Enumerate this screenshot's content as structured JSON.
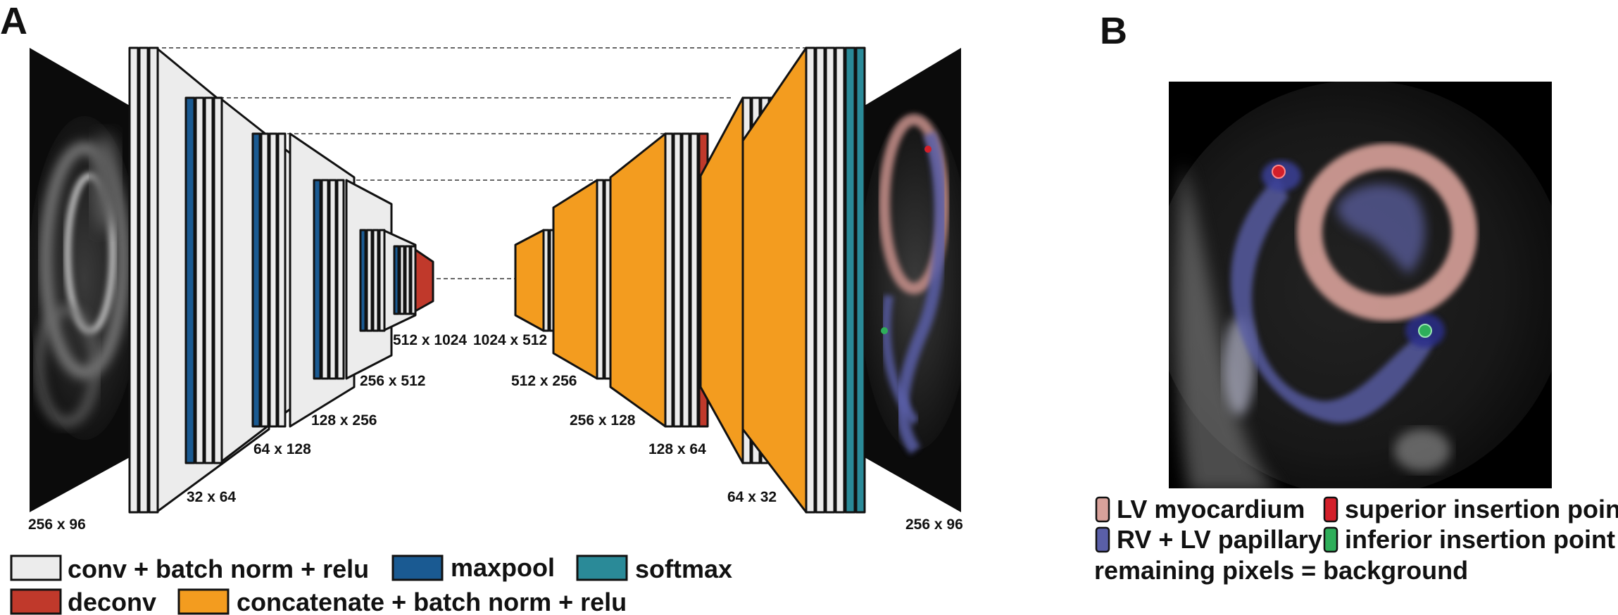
{
  "panel_a": {
    "letter": "A",
    "input_label": "256 x 96",
    "output_label": "256 x 96",
    "encoder_dims": [
      "32 x 64",
      "64 x 128",
      "128 x 256",
      "256 x 512",
      "512 x 1024"
    ],
    "decoder_dims": [
      "1024 x 512",
      "512 x 256",
      "256 x 128",
      "128 x 64",
      "64 x 32"
    ],
    "legend": [
      {
        "key": "conv",
        "label": "conv + batch norm + relu",
        "color": "#ececec"
      },
      {
        "key": "maxpool",
        "label": "maxpool",
        "color": "#1a5a92"
      },
      {
        "key": "softmax",
        "label": "softmax",
        "color": "#2a8a98"
      },
      {
        "key": "deconv",
        "label": "deconv",
        "color": "#c0392b"
      },
      {
        "key": "concat",
        "label": "concatenate + batch norm + relu",
        "color": "#f39c1f"
      }
    ]
  },
  "panel_b": {
    "letter": "B",
    "legend": [
      {
        "key": "lv",
        "label": "LV myocardium",
        "color": "#d8a19a"
      },
      {
        "key": "superior",
        "label": "superior insertion point",
        "color": "#d31f2a"
      },
      {
        "key": "rv",
        "label": "RV + LV papillary",
        "color": "#5a5fa8"
      },
      {
        "key": "inferior",
        "label": "inferior insertion point",
        "color": "#2eae5a"
      }
    ],
    "background_note": "remaining pixels = background"
  }
}
